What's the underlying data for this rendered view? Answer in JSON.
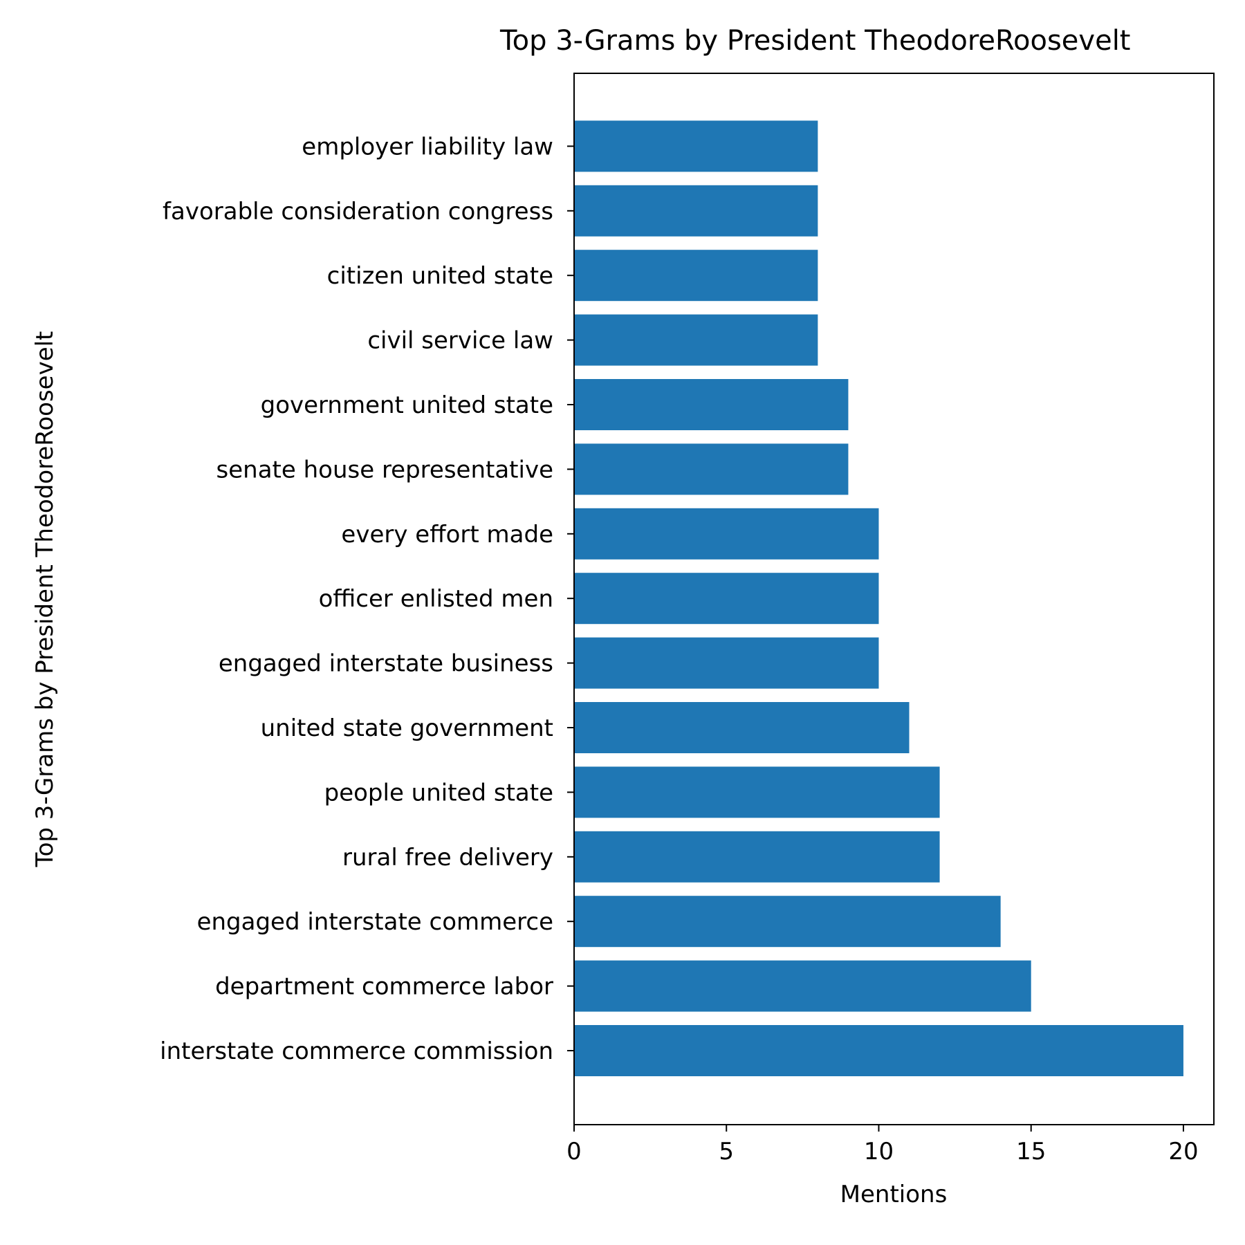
{
  "chart_data": {
    "type": "bar",
    "orientation": "horizontal",
    "title": "Top 3-Grams by President TheodoreRoosevelt",
    "xlabel": "Mentions",
    "ylabel": "Top 3-Grams by President TheodoreRoosevelt",
    "categories": [
      "interstate commerce commission",
      "department commerce labor",
      "engaged interstate commerce",
      "rural free delivery",
      "people united state",
      "united state government",
      "engaged interstate business",
      "officer enlisted men",
      "every effort made",
      "senate house representative",
      "government united state",
      "civil service law",
      "citizen united state",
      "favorable consideration congress",
      "employer liability law"
    ],
    "values": [
      20,
      15,
      14,
      12,
      12,
      11,
      10,
      10,
      10,
      9,
      9,
      8,
      8,
      8,
      8
    ],
    "xlim": [
      0,
      21
    ],
    "xticks": [
      0,
      5,
      10,
      15,
      20
    ],
    "grid": false,
    "bar_color": "#1f77b4",
    "axis_color": "#000000"
  }
}
